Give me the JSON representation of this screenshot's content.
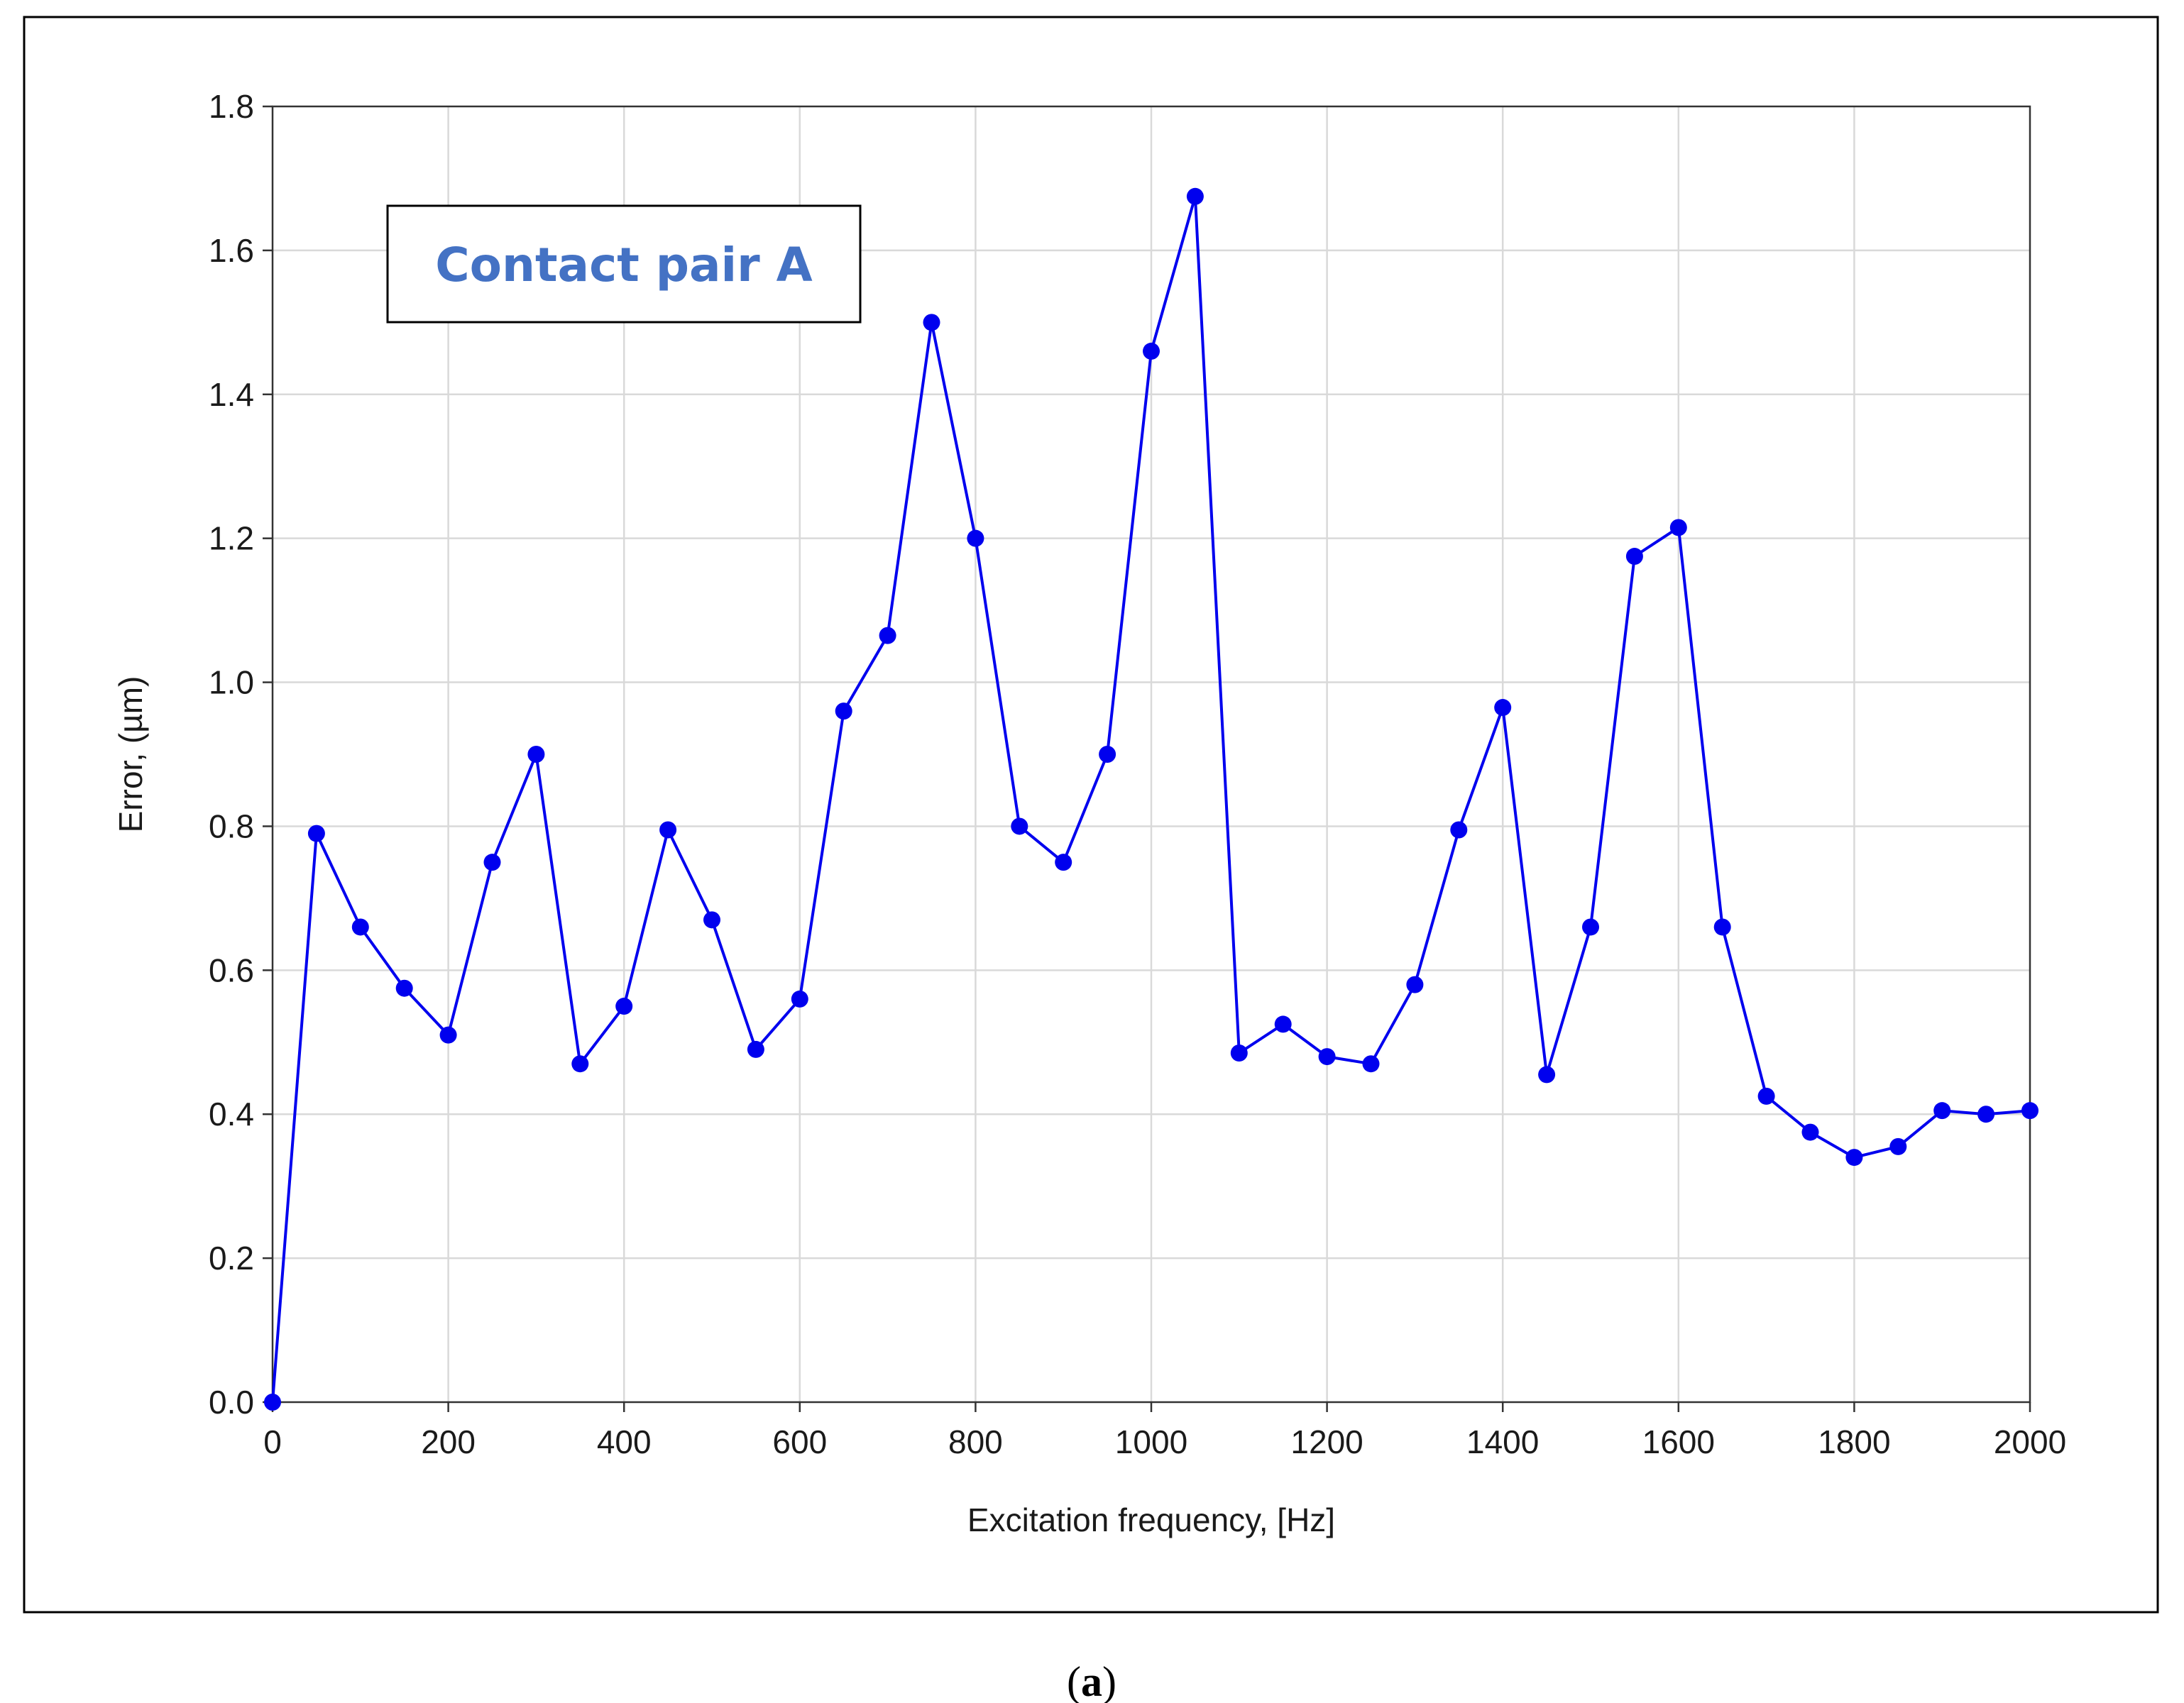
{
  "chart_data": {
    "type": "line",
    "xlabel": "Excitation frequency, [Hz]",
    "ylabel": "Error, (µm)",
    "xlim": [
      0,
      2000
    ],
    "ylim": [
      0,
      1.8
    ],
    "xticks": [
      0,
      200,
      400,
      600,
      800,
      1000,
      1200,
      1400,
      1600,
      1800,
      2000
    ],
    "xtick_labels": [
      "0",
      "200",
      "400",
      "600",
      "800",
      "1000",
      "1200",
      "1400",
      "1600",
      "1800",
      "2000"
    ],
    "yticks": [
      0,
      0.2,
      0.4,
      0.6,
      0.8,
      1.0,
      1.2,
      1.4,
      1.6,
      1.8
    ],
    "ytick_labels": [
      "0.0",
      "0.2",
      "0.4",
      "0.6",
      "0.8",
      "1.0",
      "1.2",
      "1.4",
      "1.6",
      "1.8"
    ],
    "grid": true,
    "annotation": "Contact pair A",
    "caption_open": "(",
    "caption_letter": "a",
    "caption_close": ")",
    "series": [
      {
        "color": "#0000ee",
        "x": [
          0,
          50,
          100,
          150,
          200,
          250,
          300,
          350,
          400,
          450,
          500,
          550,
          600,
          650,
          700,
          750,
          800,
          850,
          900,
          950,
          1000,
          1050,
          1100,
          1150,
          1200,
          1250,
          1300,
          1350,
          1400,
          1450,
          1500,
          1550,
          1600,
          1650,
          1700,
          1750,
          1800,
          1850,
          1900,
          1950,
          2000
        ],
        "y": [
          0.0,
          0.79,
          0.66,
          0.575,
          0.51,
          0.75,
          0.9,
          0.47,
          0.55,
          0.795,
          0.67,
          0.49,
          0.56,
          0.96,
          1.065,
          1.5,
          1.2,
          0.8,
          0.75,
          0.9,
          1.46,
          1.675,
          0.485,
          0.525,
          0.48,
          0.47,
          0.58,
          0.795,
          0.965,
          0.455,
          0.66,
          1.175,
          1.215,
          0.66,
          0.425,
          0.375,
          0.34,
          0.355,
          0.405,
          0.4,
          0.405
        ]
      }
    ]
  }
}
